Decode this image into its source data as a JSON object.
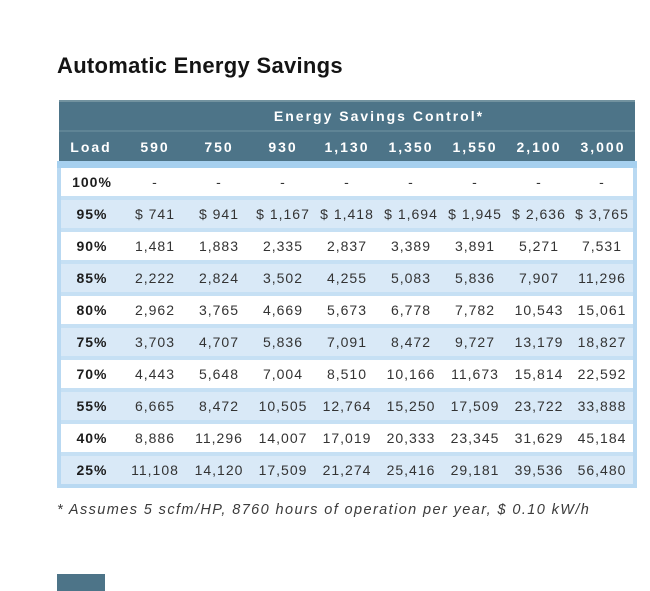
{
  "chart_data": {
    "type": "table",
    "title": "Automatic Energy Savings",
    "header_banner": "Energy Savings Control*",
    "columns": [
      "Load",
      "590",
      "750",
      "930",
      "1,130",
      "1,350",
      "1,550",
      "2,100",
      "3,000"
    ],
    "rows": [
      {
        "load": "100%",
        "values": [
          "-",
          "-",
          "-",
          "-",
          "-",
          "-",
          "-",
          "-"
        ]
      },
      {
        "load": "95%",
        "values": [
          "$ 741",
          "$ 941",
          "$ 1,167",
          "$ 1,418",
          "$ 1,694",
          "$ 1,945",
          "$ 2,636",
          "$ 3,765"
        ]
      },
      {
        "load": "90%",
        "values": [
          "1,481",
          "1,883",
          "2,335",
          "2,837",
          "3,389",
          "3,891",
          "5,271",
          "7,531"
        ]
      },
      {
        "load": "85%",
        "values": [
          "2,222",
          "2,824",
          "3,502",
          "4,255",
          "5,083",
          "5,836",
          "7,907",
          "11,296"
        ]
      },
      {
        "load": "80%",
        "values": [
          "2,962",
          "3,765",
          "4,669",
          "5,673",
          "6,778",
          "7,782",
          "10,543",
          "15,061"
        ]
      },
      {
        "load": "75%",
        "values": [
          "3,703",
          "4,707",
          "5,836",
          "7,091",
          "8,472",
          "9,727",
          "13,179",
          "18,827"
        ]
      },
      {
        "load": "70%",
        "values": [
          "4,443",
          "5,648",
          "7,004",
          "8,510",
          "10,166",
          "11,673",
          "15,814",
          "22,592"
        ]
      },
      {
        "load": "55%",
        "values": [
          "6,665",
          "8,472",
          "10,505",
          "12,764",
          "15,250",
          "17,509",
          "23,722",
          "33,888"
        ]
      },
      {
        "load": "40%",
        "values": [
          "8,886",
          "11,296",
          "14,007",
          "17,019",
          "20,333",
          "23,345",
          "31,629",
          "45,184"
        ]
      },
      {
        "load": "25%",
        "values": [
          "11,108",
          "14,120",
          "17,509",
          "21,274",
          "25,416",
          "29,181",
          "39,536",
          "56,480"
        ]
      }
    ],
    "footnote": "* Assumes 5 scfm/HP, 8760 hours of operation per year, $ 0.10 kW/h"
  },
  "colors": {
    "header_teal": "#4d7488",
    "header_highlight": "#72929f",
    "strip_blue": "#a6d0ef",
    "row_blue": "#d9e9f7",
    "separator_blue": "#c6e0f4",
    "outer_border_blue": "#b9d9f2",
    "title_ink": "#141414",
    "body_ink": "#333333"
  }
}
